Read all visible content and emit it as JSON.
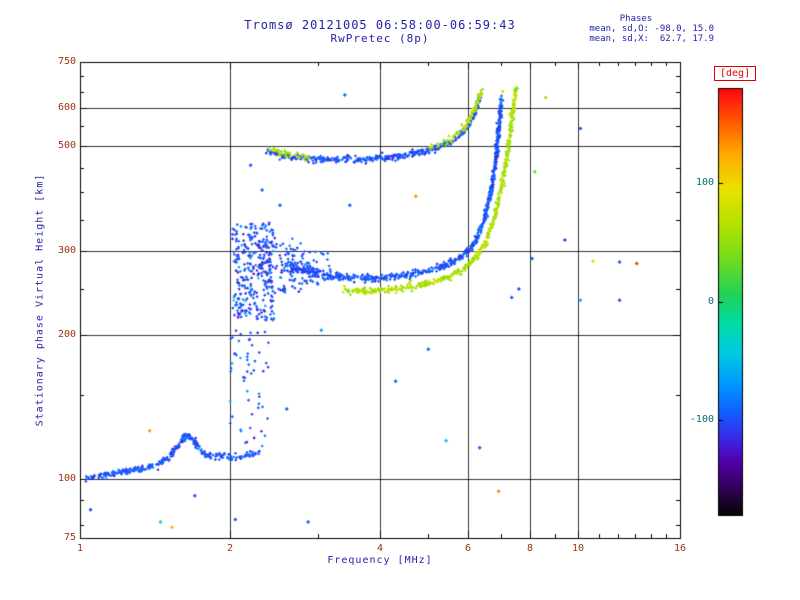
{
  "title": "Tromsø 20121005 06:58:00-06:59:43",
  "subtitle": "RwPretec (8p)",
  "phases_box": {
    "heading": "Phases",
    "line_o": "mean, sd,O: -98.0, 15.0",
    "line_x": "mean, sd,X:  62.7, 17.9"
  },
  "colorbar": {
    "label": "[deg]",
    "ticks": [
      100,
      0,
      -100
    ],
    "range": [
      -180,
      180
    ]
  },
  "chart_data": {
    "type": "scatter",
    "title": "Tromsø 20121005 06:58:00-06:59:43  RwPretec (8p)",
    "xlabel": "Frequency [MHz]",
    "ylabel": "Stationary phase Virtual Height [km]",
    "x_axis": {
      "scale": "log",
      "min": 1,
      "max": 16,
      "labeled_ticks": [
        1,
        2,
        4,
        6,
        8,
        10,
        16
      ],
      "minor_ticks": [
        3,
        5,
        7,
        9,
        11,
        12,
        13,
        14,
        15
      ],
      "gridlines": [
        2,
        4,
        6,
        8,
        10
      ]
    },
    "y_axis": {
      "scale": "log",
      "min": 75,
      "max": 750,
      "labeled_ticks": [
        75,
        100,
        200,
        300,
        500,
        600,
        750
      ],
      "minor_ticks": [
        80,
        90,
        150,
        250,
        350,
        400,
        450,
        550,
        650,
        700
      ],
      "gridlines": [
        100,
        200,
        300,
        500,
        600
      ]
    },
    "colormap": [
      [
        -180,
        [
          5,
          5,
          5
        ]
      ],
      [
        -160,
        [
          45,
          0,
          75
        ]
      ],
      [
        -135,
        [
          80,
          0,
          170
        ]
      ],
      [
        -115,
        [
          60,
          40,
          230
        ]
      ],
      [
        -95,
        [
          20,
          90,
          255
        ]
      ],
      [
        -70,
        [
          0,
          150,
          255
        ]
      ],
      [
        -45,
        [
          0,
          200,
          230
        ]
      ],
      [
        -20,
        [
          0,
          220,
          170
        ]
      ],
      [
        5,
        [
          30,
          210,
          90
        ]
      ],
      [
        35,
        [
          110,
          220,
          30
        ]
      ],
      [
        65,
        [
          180,
          225,
          0
        ]
      ],
      [
        95,
        [
          235,
          225,
          0
        ]
      ],
      [
        125,
        [
          255,
          170,
          0
        ]
      ],
      [
        155,
        [
          255,
          80,
          0
        ]
      ],
      [
        175,
        [
          255,
          20,
          20
        ]
      ],
      [
        180,
        [
          255,
          0,
          0
        ]
      ]
    ],
    "traces": [
      {
        "name": "E-layer O-mode",
        "kind": "curve",
        "n": 300,
        "jitter": [
          1.0,
          1.5
        ],
        "phase_mean": -98,
        "phase_sd": 10,
        "points": [
          [
            1.03,
            100
          ],
          [
            1.12,
            102
          ],
          [
            1.25,
            104
          ],
          [
            1.4,
            106
          ],
          [
            1.5,
            110
          ],
          [
            1.58,
            118
          ],
          [
            1.64,
            124
          ],
          [
            1.7,
            119
          ],
          [
            1.76,
            113
          ],
          [
            1.85,
            111
          ],
          [
            2.0,
            111
          ],
          [
            2.15,
            112
          ],
          [
            2.3,
            113
          ]
        ]
      },
      {
        "name": "E-F valley scatter",
        "kind": "cloud",
        "n": 55,
        "f_range": [
          2.0,
          2.4
        ],
        "h_range": [
          116,
          212
        ],
        "phase_mean": -98,
        "phase_sd": 18
      },
      {
        "name": "cusp scatter column",
        "kind": "cloud",
        "n": 280,
        "f_range": [
          2.02,
          2.45
        ],
        "h_range": [
          215,
          345
        ],
        "phase_mean": -98,
        "phase_sd": 16
      },
      {
        "name": "cusp tail",
        "kind": "cloud",
        "n": 100,
        "f_range": [
          2.3,
          2.8
        ],
        "h_range": [
          245,
          320
        ],
        "phase_mean": -98,
        "phase_sd": 14
      },
      {
        "name": "F start scatter",
        "kind": "cloud",
        "n": 70,
        "f_range": [
          2.6,
          3.2
        ],
        "h_range": [
          255,
          300
        ],
        "phase_mean": -98,
        "phase_sd": 12
      },
      {
        "name": "F-trace O-mode",
        "kind": "curve",
        "n": 650,
        "jitter": [
          0.8,
          1.8
        ],
        "phase_mean": -98,
        "phase_sd": 10,
        "points": [
          [
            2.6,
            282
          ],
          [
            2.8,
            273
          ],
          [
            3.1,
            267
          ],
          [
            3.5,
            264
          ],
          [
            4.0,
            264
          ],
          [
            4.5,
            267
          ],
          [
            5.0,
            272
          ],
          [
            5.5,
            282
          ],
          [
            5.9,
            295
          ],
          [
            6.2,
            315
          ],
          [
            6.45,
            345
          ],
          [
            6.65,
            390
          ],
          [
            6.8,
            450
          ],
          [
            6.9,
            520
          ],
          [
            6.97,
            590
          ],
          [
            7.02,
            635
          ]
        ]
      },
      {
        "name": "F-trace X-mode",
        "kind": "curve",
        "n": 520,
        "jitter": [
          0.8,
          1.8
        ],
        "phase_mean": 63,
        "phase_sd": 12,
        "points": [
          [
            3.35,
            250
          ],
          [
            3.7,
            248
          ],
          [
            4.1,
            249
          ],
          [
            4.5,
            252
          ],
          [
            5.0,
            257
          ],
          [
            5.5,
            265
          ],
          [
            5.9,
            276
          ],
          [
            6.2,
            290
          ],
          [
            6.5,
            312
          ],
          [
            6.75,
            345
          ],
          [
            6.95,
            390
          ],
          [
            7.15,
            455
          ],
          [
            7.3,
            530
          ],
          [
            7.42,
            610
          ],
          [
            7.5,
            660
          ]
        ]
      },
      {
        "name": "second-hop O-mode",
        "kind": "curve",
        "n": 430,
        "jitter": [
          0.8,
          1.6
        ],
        "phase_mean": -98,
        "phase_sd": 11,
        "points": [
          [
            2.38,
            487
          ],
          [
            2.6,
            475
          ],
          [
            3.0,
            468
          ],
          [
            3.6,
            468
          ],
          [
            4.2,
            473
          ],
          [
            4.8,
            483
          ],
          [
            5.2,
            494
          ],
          [
            5.6,
            512
          ],
          [
            5.9,
            537
          ],
          [
            6.1,
            565
          ],
          [
            6.25,
            600
          ],
          [
            6.35,
            638
          ]
        ]
      },
      {
        "name": "second-hop X-mode left",
        "kind": "curve",
        "n": 45,
        "jitter": [
          0.8,
          1.8
        ],
        "phase_mean": 63,
        "phase_sd": 14,
        "points": [
          [
            2.4,
            492
          ],
          [
            2.62,
            481
          ],
          [
            2.88,
            474
          ]
        ]
      },
      {
        "name": "second-hop X-mode right",
        "kind": "curve",
        "n": 90,
        "jitter": [
          0.8,
          1.8
        ],
        "phase_mean": 63,
        "phase_sd": 14,
        "points": [
          [
            5.0,
            495
          ],
          [
            5.5,
            515
          ],
          [
            5.9,
            545
          ],
          [
            6.15,
            585
          ],
          [
            6.3,
            625
          ],
          [
            6.4,
            655
          ]
        ]
      }
    ],
    "stray_points": [
      [
        1.38,
        126,
        130
      ],
      [
        1.45,
        81,
        -40
      ],
      [
        1.53,
        79,
        120
      ],
      [
        2.05,
        82,
        -98
      ],
      [
        1.05,
        86,
        -100
      ],
      [
        3.48,
        375,
        -95
      ],
      [
        3.4,
        639,
        -90
      ],
      [
        4.72,
        392,
        135
      ],
      [
        5.43,
        120,
        -45
      ],
      [
        6.92,
        94,
        140
      ],
      [
        8.18,
        441,
        30
      ],
      [
        8.08,
        290,
        -95
      ],
      [
        9.4,
        317,
        -100
      ],
      [
        10.1,
        237,
        -50
      ],
      [
        10.7,
        286,
        90
      ],
      [
        12.1,
        237,
        -105
      ],
      [
        13.1,
        283,
        165
      ],
      [
        12.1,
        285,
        -98
      ],
      [
        10.1,
        544,
        -95
      ],
      [
        8.6,
        632,
        60
      ],
      [
        2.87,
        81,
        -95
      ],
      [
        7.35,
        240,
        -95
      ],
      [
        7.6,
        250,
        -100
      ],
      [
        6.34,
        116,
        -95
      ],
      [
        5.0,
        187,
        -95
      ],
      [
        2.52,
        375,
        -98
      ],
      [
        2.32,
        404,
        -95
      ],
      [
        2.2,
        455,
        -95
      ],
      [
        7.05,
        650,
        85
      ],
      [
        4.3,
        160,
        -95
      ],
      [
        3.05,
        205,
        -60
      ],
      [
        1.7,
        92,
        -98
      ],
      [
        2.6,
        140,
        -95
      ]
    ]
  }
}
